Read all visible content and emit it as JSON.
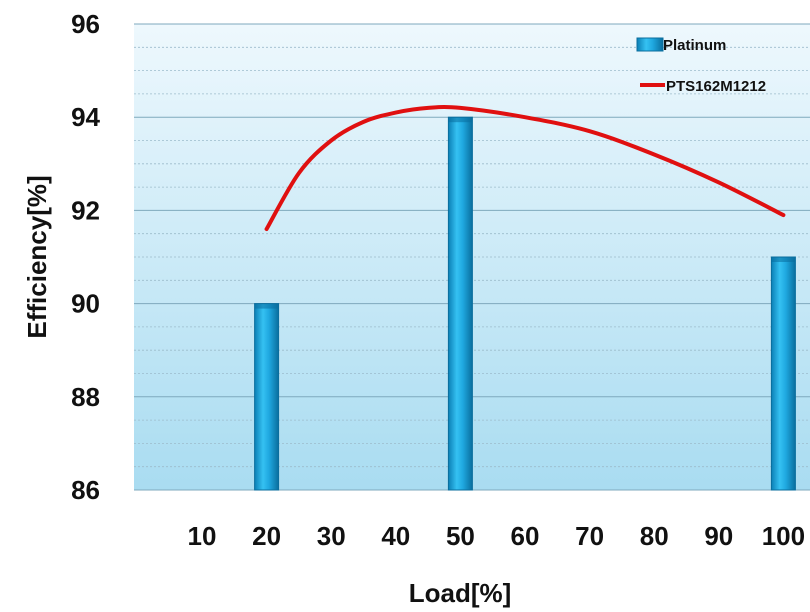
{
  "chart_data": {
    "type": "bar",
    "title": "",
    "xlabel": "Load[%]",
    "ylabel": "Efficiency[%]",
    "ylim": [
      86,
      96
    ],
    "yticks": [
      86,
      88,
      90,
      92,
      94,
      96
    ],
    "categories": [
      "10",
      "20",
      "30",
      "40",
      "50",
      "60",
      "70",
      "80",
      "90",
      "100"
    ],
    "grid": true,
    "legend_position": "top-right",
    "series": [
      {
        "name": "Platinum",
        "kind": "bar",
        "color": "#1fa8e0",
        "points": [
          {
            "x": "20",
            "y": 90
          },
          {
            "x": "50",
            "y": 94
          },
          {
            "x": "100",
            "y": 91
          }
        ]
      },
      {
        "name": "PTS162M1212",
        "kind": "line",
        "color": "#e01010",
        "points": [
          {
            "x": 20,
            "y": 91.6
          },
          {
            "x": 25,
            "y": 92.8
          },
          {
            "x": 30,
            "y": 93.5
          },
          {
            "x": 35,
            "y": 93.9
          },
          {
            "x": 40,
            "y": 94.1
          },
          {
            "x": 45,
            "y": 94.2
          },
          {
            "x": 50,
            "y": 94.2
          },
          {
            "x": 60,
            "y": 94.0
          },
          {
            "x": 70,
            "y": 93.7
          },
          {
            "x": 80,
            "y": 93.2
          },
          {
            "x": 90,
            "y": 92.6
          },
          {
            "x": 100,
            "y": 91.9
          }
        ]
      }
    ]
  }
}
